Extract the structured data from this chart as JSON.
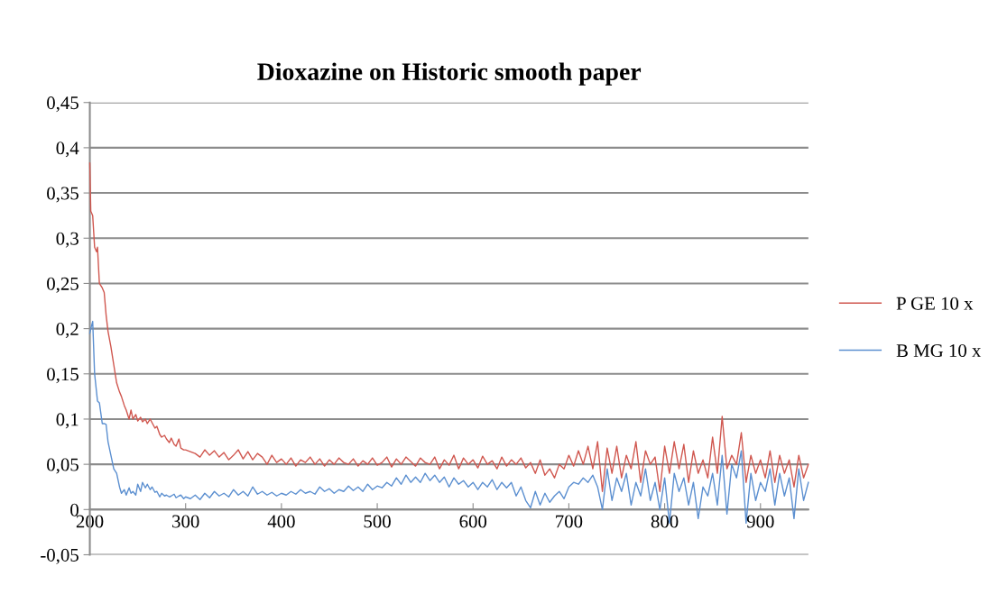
{
  "chart_data": {
    "type": "line",
    "title": "Dioxazine on Historic smooth paper",
    "x": [
      200,
      201,
      203,
      205,
      207,
      208,
      210,
      213,
      215,
      217,
      219,
      222,
      225,
      228,
      231,
      233,
      236,
      238,
      241,
      243,
      245,
      248,
      250,
      253,
      255,
      258,
      260,
      263,
      265,
      268,
      270,
      273,
      275,
      278,
      280,
      283,
      285,
      288,
      290,
      293,
      295,
      298,
      300,
      305,
      310,
      315,
      320,
      325,
      330,
      335,
      340,
      345,
      350,
      355,
      360,
      365,
      370,
      375,
      380,
      385,
      390,
      395,
      400,
      405,
      410,
      415,
      420,
      425,
      430,
      435,
      440,
      445,
      450,
      455,
      460,
      465,
      470,
      475,
      480,
      485,
      490,
      495,
      500,
      505,
      510,
      515,
      520,
      525,
      530,
      535,
      540,
      545,
      550,
      555,
      560,
      565,
      570,
      575,
      580,
      585,
      590,
      595,
      600,
      605,
      610,
      615,
      620,
      625,
      630,
      635,
      640,
      645,
      650,
      655,
      660,
      665,
      670,
      675,
      680,
      685,
      690,
      695,
      700,
      705,
      710,
      715,
      720,
      725,
      730,
      735,
      740,
      745,
      750,
      755,
      760,
      765,
      770,
      775,
      780,
      785,
      790,
      795,
      800,
      805,
      810,
      815,
      820,
      825,
      830,
      835,
      840,
      845,
      850,
      855,
      860,
      865,
      870,
      875,
      880,
      885,
      890,
      895,
      900,
      905,
      910,
      915,
      920,
      925,
      930,
      935,
      940,
      945,
      950
    ],
    "series": [
      {
        "name": "P GE 10 x",
        "color": "#d0574f",
        "values": [
          0.383,
          0.33,
          0.325,
          0.29,
          0.285,
          0.29,
          0.25,
          0.245,
          0.24,
          0.215,
          0.197,
          0.18,
          0.16,
          0.14,
          0.13,
          0.125,
          0.115,
          0.11,
          0.1,
          0.11,
          0.1,
          0.105,
          0.098,
          0.102,
          0.097,
          0.1,
          0.095,
          0.1,
          0.096,
          0.09,
          0.092,
          0.083,
          0.08,
          0.082,
          0.078,
          0.074,
          0.079,
          0.072,
          0.07,
          0.078,
          0.068,
          0.066,
          0.066,
          0.064,
          0.062,
          0.058,
          0.066,
          0.06,
          0.065,
          0.058,
          0.063,
          0.055,
          0.06,
          0.066,
          0.056,
          0.064,
          0.055,
          0.062,
          0.058,
          0.05,
          0.06,
          0.052,
          0.056,
          0.05,
          0.057,
          0.048,
          0.055,
          0.052,
          0.058,
          0.05,
          0.056,
          0.048,
          0.055,
          0.05,
          0.057,
          0.052,
          0.05,
          0.056,
          0.048,
          0.054,
          0.05,
          0.057,
          0.049,
          0.052,
          0.058,
          0.047,
          0.056,
          0.05,
          0.058,
          0.053,
          0.048,
          0.057,
          0.052,
          0.05,
          0.058,
          0.045,
          0.055,
          0.049,
          0.06,
          0.045,
          0.057,
          0.05,
          0.055,
          0.046,
          0.059,
          0.05,
          0.054,
          0.045,
          0.058,
          0.048,
          0.055,
          0.05,
          0.057,
          0.046,
          0.052,
          0.04,
          0.055,
          0.038,
          0.045,
          0.035,
          0.05,
          0.045,
          0.06,
          0.048,
          0.065,
          0.05,
          0.07,
          0.045,
          0.075,
          0.02,
          0.068,
          0.04,
          0.07,
          0.035,
          0.06,
          0.045,
          0.075,
          0.03,
          0.065,
          0.05,
          0.058,
          0.02,
          0.07,
          0.04,
          0.075,
          0.045,
          0.072,
          0.03,
          0.065,
          0.04,
          0.055,
          0.035,
          0.08,
          0.04,
          0.103,
          0.045,
          0.06,
          0.05,
          0.085,
          0.03,
          0.06,
          0.04,
          0.055,
          0.035,
          0.065,
          0.03,
          0.06,
          0.04,
          0.055,
          0.025,
          0.06,
          0.035,
          0.05
        ]
      },
      {
        "name": "B MG 10 x",
        "color": "#5b8fd0",
        "values": [
          0.195,
          0.2,
          0.208,
          0.15,
          0.13,
          0.12,
          0.118,
          0.095,
          0.095,
          0.094,
          0.075,
          0.06,
          0.045,
          0.04,
          0.025,
          0.018,
          0.022,
          0.016,
          0.024,
          0.018,
          0.02,
          0.016,
          0.028,
          0.02,
          0.03,
          0.024,
          0.028,
          0.022,
          0.025,
          0.019,
          0.02,
          0.014,
          0.018,
          0.015,
          0.016,
          0.014,
          0.015,
          0.017,
          0.013,
          0.015,
          0.016,
          0.012,
          0.014,
          0.012,
          0.016,
          0.011,
          0.018,
          0.013,
          0.02,
          0.015,
          0.018,
          0.014,
          0.022,
          0.016,
          0.02,
          0.015,
          0.025,
          0.017,
          0.02,
          0.016,
          0.019,
          0.015,
          0.018,
          0.016,
          0.02,
          0.017,
          0.022,
          0.018,
          0.02,
          0.017,
          0.025,
          0.02,
          0.023,
          0.018,
          0.022,
          0.02,
          0.026,
          0.021,
          0.025,
          0.02,
          0.028,
          0.022,
          0.026,
          0.024,
          0.03,
          0.026,
          0.035,
          0.028,
          0.038,
          0.03,
          0.036,
          0.03,
          0.04,
          0.032,
          0.038,
          0.03,
          0.036,
          0.025,
          0.035,
          0.028,
          0.032,
          0.025,
          0.03,
          0.022,
          0.03,
          0.025,
          0.033,
          0.022,
          0.03,
          0.024,
          0.03,
          0.015,
          0.025,
          0.01,
          0.002,
          0.02,
          0.005,
          0.018,
          0.008,
          0.015,
          0.02,
          0.012,
          0.025,
          0.03,
          0.028,
          0.035,
          0.03,
          0.038,
          0.025,
          0.0,
          0.045,
          0.01,
          0.035,
          0.02,
          0.04,
          0.005,
          0.03,
          0.015,
          0.045,
          0.01,
          0.03,
          0.0,
          0.035,
          -0.015,
          0.04,
          0.02,
          0.035,
          0.005,
          0.03,
          -0.01,
          0.025,
          0.015,
          0.04,
          0.005,
          0.06,
          -0.005,
          0.05,
          0.035,
          0.065,
          -0.015,
          0.04,
          0.01,
          0.03,
          0.02,
          0.045,
          0.005,
          0.04,
          0.015,
          0.035,
          -0.01,
          0.045,
          0.01,
          0.03
        ]
      }
    ],
    "xlim": [
      200,
      950
    ],
    "xticks": [
      200,
      300,
      400,
      500,
      600,
      700,
      800,
      900
    ],
    "ylim": [
      -0.05,
      0.45
    ],
    "yticks": [
      {
        "value": -0.05,
        "label": "-0,05"
      },
      {
        "value": 0,
        "label": "0"
      },
      {
        "value": 0.05,
        "label": "0,05"
      },
      {
        "value": 0.1,
        "label": "0,1"
      },
      {
        "value": 0.15,
        "label": "0,15"
      },
      {
        "value": 0.2,
        "label": "0,2"
      },
      {
        "value": 0.25,
        "label": "0,25"
      },
      {
        "value": 0.3,
        "label": "0,3"
      },
      {
        "value": 0.35,
        "label": "0,35"
      },
      {
        "value": 0.4,
        "label": "0,4"
      },
      {
        "value": 0.45,
        "label": "0,45"
      }
    ],
    "grid": "y",
    "legend": "right",
    "marker": "none",
    "line_style": "solid"
  }
}
